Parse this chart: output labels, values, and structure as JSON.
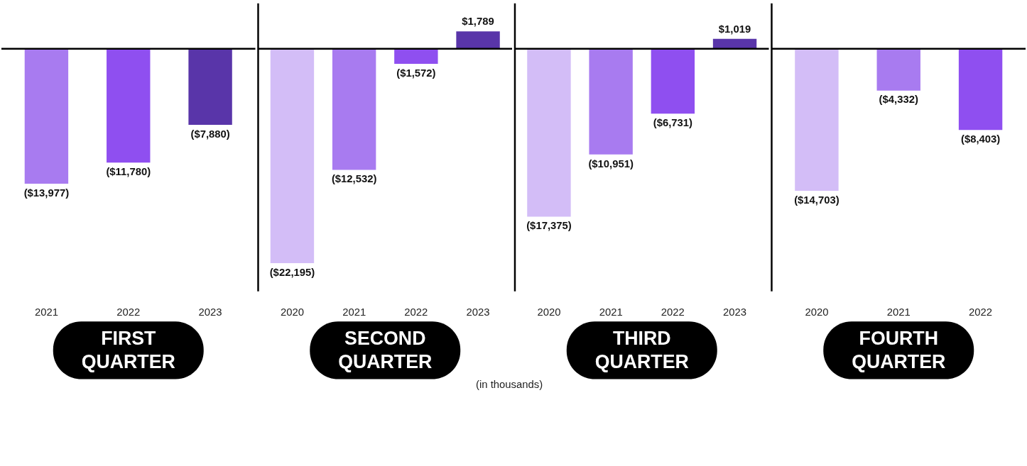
{
  "chart_data": [
    {
      "type": "bar",
      "xlabel": "FIRST QUARTER",
      "categories": [
        "2021",
        "2022",
        "2023"
      ],
      "values": [
        -13977,
        -11780,
        -7880
      ],
      "colors": [
        "#a87bf0",
        "#8f4ff0",
        "#5935a9"
      ],
      "value_labels": [
        "($13,977)",
        "($11,780)",
        "($7,880)"
      ],
      "tick_labels": "x"
    },
    {
      "type": "bar",
      "xlabel": "SECOND QUARTER",
      "categories": [
        "2020",
        "2021",
        "2022",
        "2023"
      ],
      "values": [
        -22195,
        -12532,
        -1572,
        1789
      ],
      "colors": [
        "#d3bdf7",
        "#a87bf0",
        "#8f4ff0",
        "#5935a9"
      ],
      "value_labels": [
        "($22,195)",
        "($12,532)",
        "($1,572)",
        "$1,789"
      ],
      "tick_labels": "x",
      "annotations": [
        "(in thousands)"
      ]
    },
    {
      "type": "bar",
      "xlabel": "THIRD QUARTER",
      "categories": [
        "2020",
        "2021",
        "2022",
        "2023"
      ],
      "values": [
        -17375,
        -10951,
        -6731,
        1019
      ],
      "colors": [
        "#d3bdf7",
        "#a87bf0",
        "#8f4ff0",
        "#5935a9"
      ],
      "value_labels": [
        "($17,375)",
        "($10,951)",
        "($6,731)",
        "$1,019"
      ],
      "tick_labels": "x"
    },
    {
      "type": "bar",
      "xlabel": "FOURTH QUARTER",
      "categories": [
        "2020",
        "2021",
        "2022"
      ],
      "values": [
        -14703,
        -4332,
        -8403
      ],
      "colors": [
        "#d3bdf7",
        "#a87bf0",
        "#8f4ff0"
      ],
      "value_labels": [
        "($14,703)",
        "($4,332)",
        "($8,403)"
      ],
      "tick_labels": "x"
    }
  ]
}
